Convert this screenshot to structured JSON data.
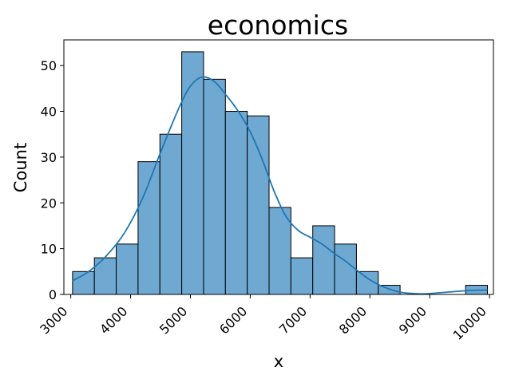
{
  "chart_data": {
    "type": "bar",
    "title": "economics",
    "xlabel": "x",
    "ylabel": "Count",
    "xlim": [
      2885,
      10065
    ],
    "ylim": [
      0,
      55.6
    ],
    "bar_color": "#6fa8d1",
    "bar_edge_color": "#000000",
    "kde_color": "#1f77b4",
    "x_ticks": [
      3000,
      4000,
      5000,
      6000,
      7000,
      8000,
      9000,
      10000
    ],
    "y_ticks": [
      0,
      10,
      20,
      30,
      40,
      50
    ],
    "bins": [
      {
        "x0": 3030,
        "x1": 3395,
        "count": 5
      },
      {
        "x0": 3395,
        "x1": 3760,
        "count": 8
      },
      {
        "x0": 3760,
        "x1": 4125,
        "count": 11
      },
      {
        "x0": 4125,
        "x1": 4490,
        "count": 29
      },
      {
        "x0": 4490,
        "x1": 4855,
        "count": 35
      },
      {
        "x0": 4855,
        "x1": 5220,
        "count": 53
      },
      {
        "x0": 5220,
        "x1": 5585,
        "count": 47
      },
      {
        "x0": 5585,
        "x1": 5950,
        "count": 40
      },
      {
        "x0": 5950,
        "x1": 6315,
        "count": 39
      },
      {
        "x0": 6315,
        "x1": 6680,
        "count": 19
      },
      {
        "x0": 6680,
        "x1": 7045,
        "count": 8
      },
      {
        "x0": 7045,
        "x1": 7410,
        "count": 15
      },
      {
        "x0": 7410,
        "x1": 7775,
        "count": 11
      },
      {
        "x0": 7775,
        "x1": 8140,
        "count": 5
      },
      {
        "x0": 8140,
        "x1": 8505,
        "count": 2
      },
      {
        "x0": 8505,
        "x1": 8870,
        "count": 0
      },
      {
        "x0": 8870,
        "x1": 9235,
        "count": 0
      },
      {
        "x0": 9235,
        "x1": 9600,
        "count": 0
      },
      {
        "x0": 9600,
        "x1": 9965,
        "count": 2
      }
    ],
    "kde": {
      "x": [
        3030,
        3300,
        3600,
        3900,
        4200,
        4500,
        4800,
        5000,
        5200,
        5400,
        5600,
        5800,
        6000,
        6200,
        6400,
        6600,
        6800,
        7000,
        7200,
        7400,
        7600,
        7800,
        8000,
        8200,
        8500,
        8800,
        9000,
        9300,
        9600,
        9965
      ],
      "y": [
        3,
        5,
        8.5,
        13.5,
        21,
        31,
        40.5,
        45.5,
        47.5,
        46.5,
        43.5,
        40,
        35.5,
        29.5,
        22.5,
        17,
        14,
        12.5,
        11,
        9,
        7.2,
        5.1,
        3.2,
        1.8,
        0.5,
        0.15,
        0.2,
        0.5,
        0.8,
        1.0
      ]
    }
  }
}
